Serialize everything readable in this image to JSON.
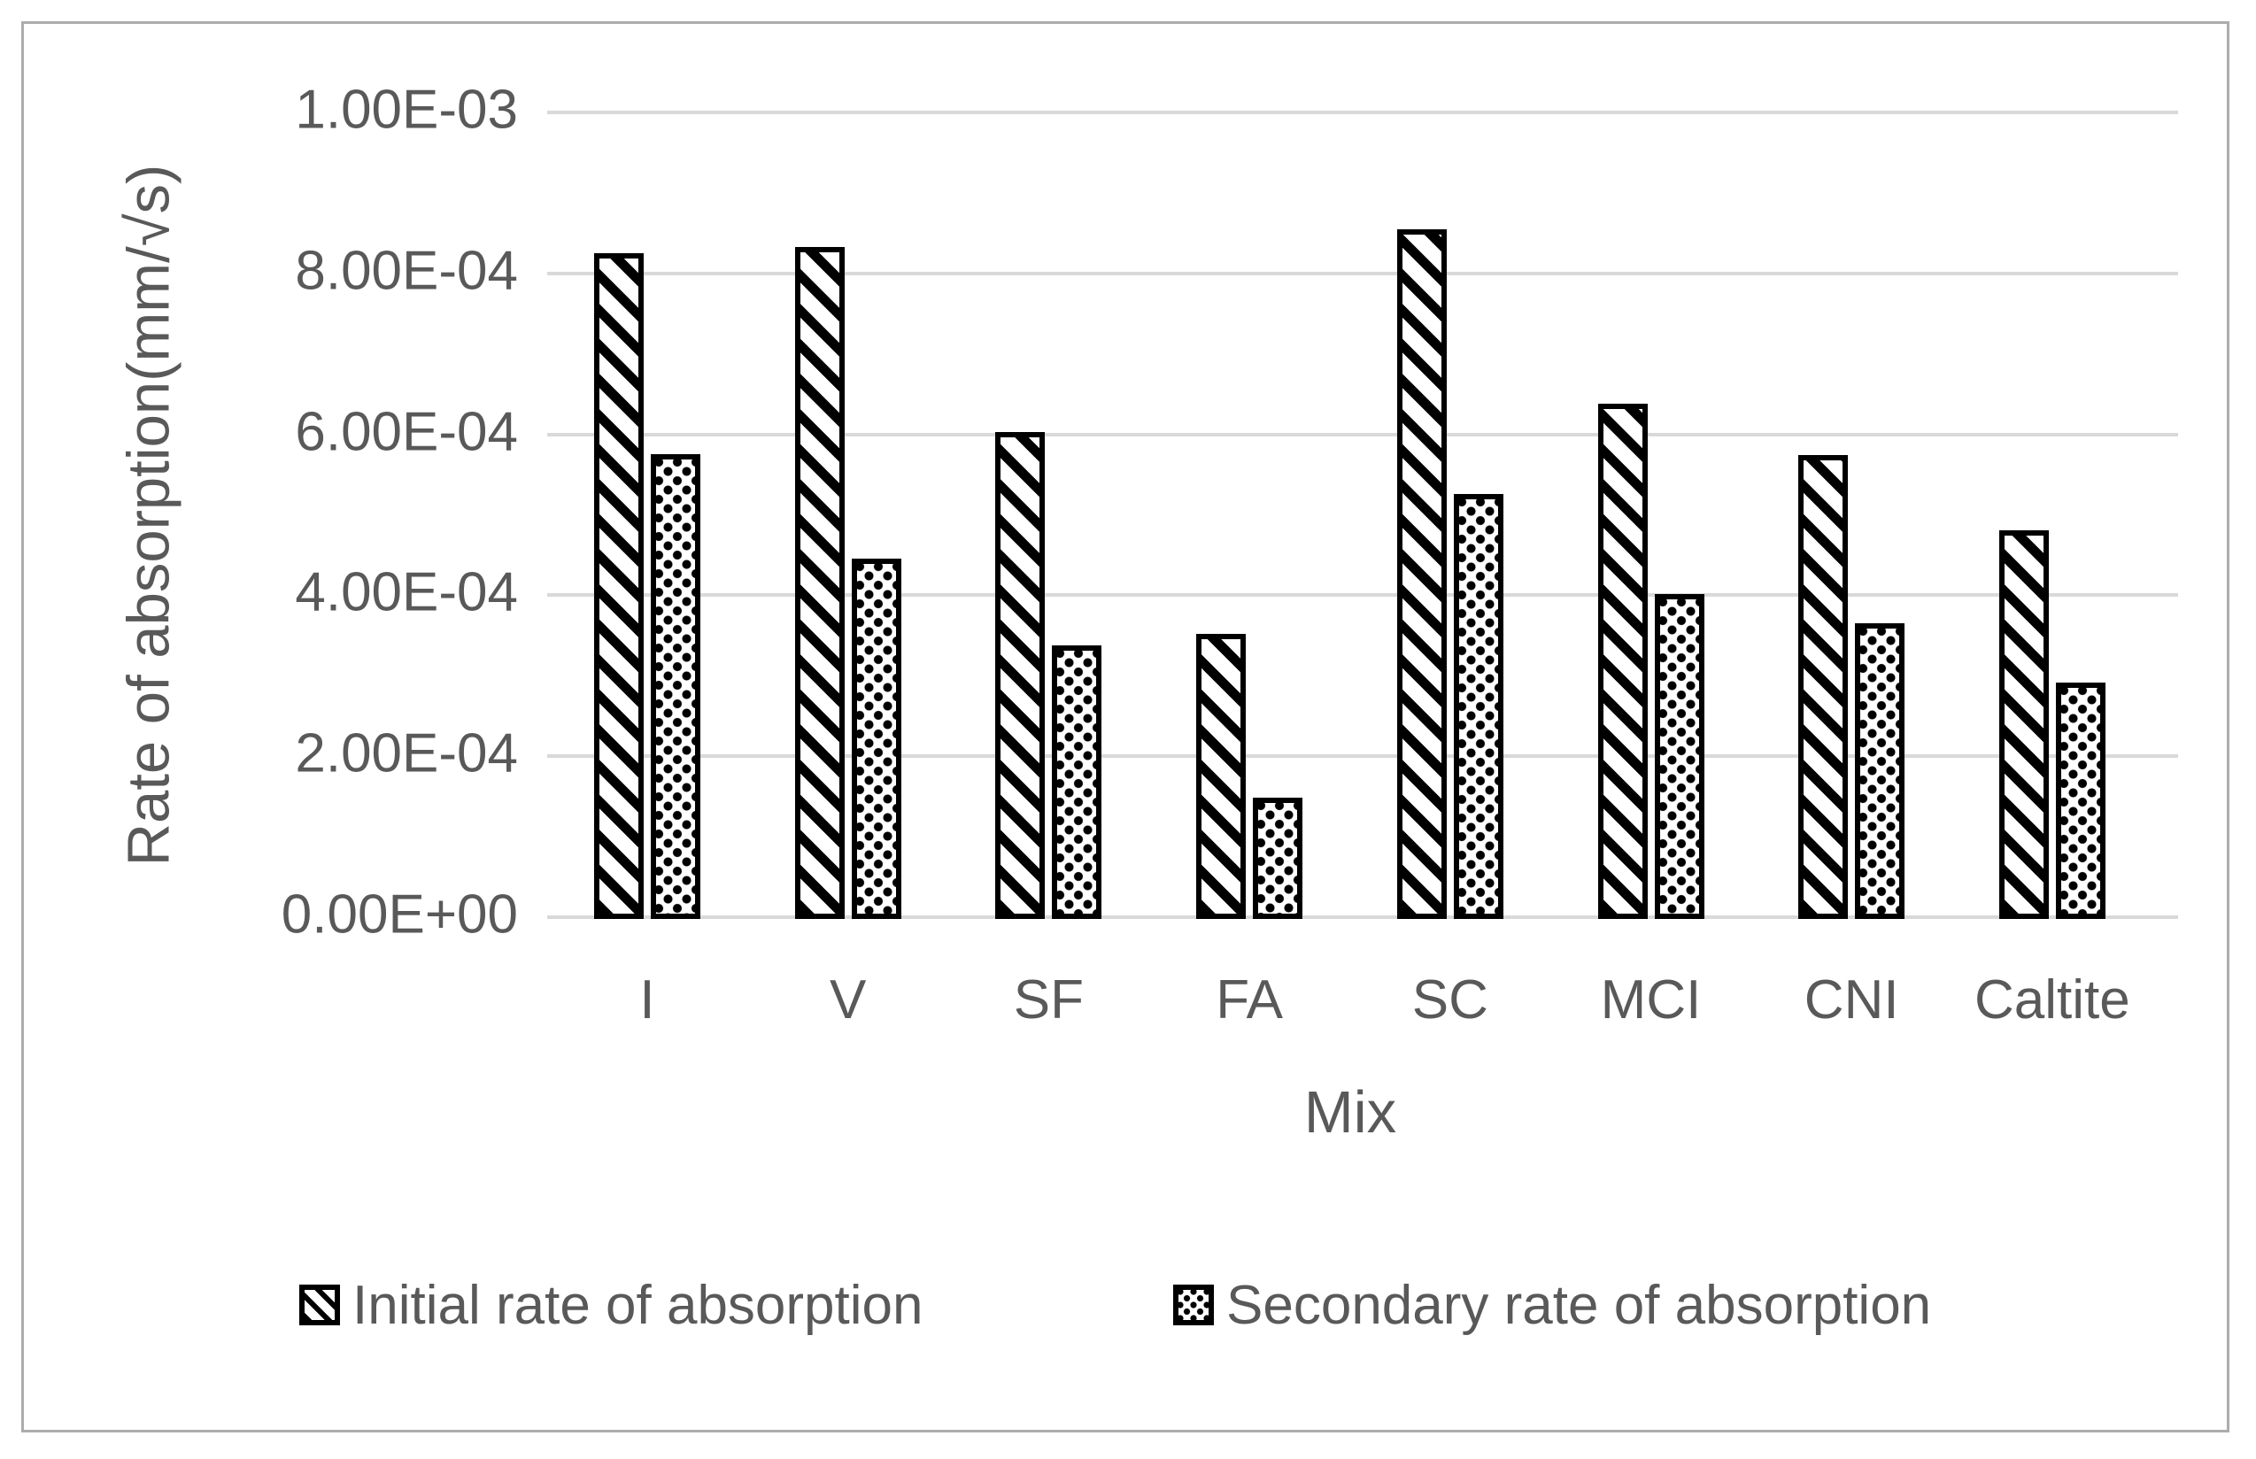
{
  "chart_data": {
    "type": "bar",
    "title": "",
    "categories": [
      "I",
      "V",
      "SF",
      "FA",
      "SC",
      "MCI",
      "CNI",
      "Caltite"
    ],
    "series": [
      {
        "name": "Initial rate of absorption",
        "pattern": "diagonal-stripes",
        "values": [
          0.000825,
          0.000833,
          0.000603,
          0.000352,
          0.000855,
          0.000638,
          0.000574,
          0.000481
        ]
      },
      {
        "name": "Secondary rate of absorption",
        "pattern": "dotted-diamond",
        "values": [
          0.000575,
          0.000445,
          0.000338,
          0.000148,
          0.000526,
          0.000401,
          0.000365,
          0.000291
        ]
      }
    ],
    "xlabel": "Mix",
    "ylabel": "Rate of absorption(mm/√s)",
    "ylim": [
      0,
      0.001
    ],
    "yticks": [
      {
        "value": 0,
        "label": "0.00E+00"
      },
      {
        "value": 0.0002,
        "label": "2.00E-04"
      },
      {
        "value": 0.0004,
        "label": "4.00E-04"
      },
      {
        "value": 0.0006,
        "label": "6.00E-04"
      },
      {
        "value": 0.0008,
        "label": "8.00E-04"
      },
      {
        "value": 0.001,
        "label": "1.00E-03"
      }
    ],
    "grid": true,
    "legend_position": "bottom"
  },
  "colors": {
    "text": "#595959",
    "gridline": "#d9d9d9",
    "bar_outline": "#000000",
    "bar_fill": "#ffffff",
    "chart_border": "#acacac",
    "background": "#ffffff"
  }
}
